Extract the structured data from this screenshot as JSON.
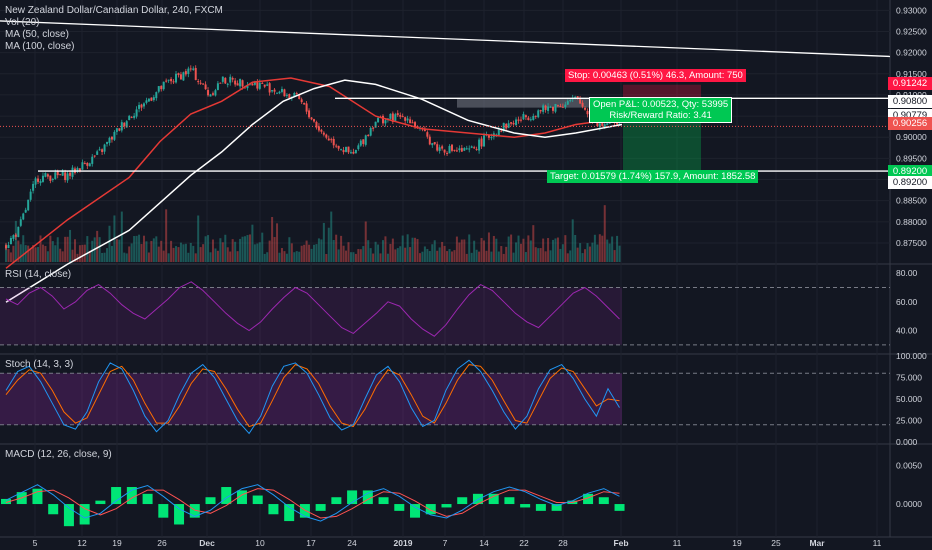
{
  "legend": {
    "symbol": "New Zealand Dollar/Canadian Dollar, 240, FXCM",
    "vol": "Vol (20)",
    "ma50": "MA (50, close)",
    "ma100": "MA (100, close)",
    "rsi": "RSI (14, close)",
    "stoch": "Stoch (14, 3, 3)",
    "macd": "MACD (12, 26, close, 9)"
  },
  "colors": {
    "background": "#131722",
    "up_candle": "#26a69a",
    "down_candle": "#ef5350",
    "ma50": "#e53935",
    "ma100": "#ffffff",
    "rsi": "#9c27b0",
    "stoch_k": "#2196f3",
    "stoch_d": "#ff6d00",
    "macd_line": "#2196f3",
    "signal_line": "#ff5252",
    "histogram": "#00e676",
    "stop_box": "#ff1744",
    "target_box": "#00c853",
    "pnl_box": "#00c853"
  },
  "price_tags": {
    "stop": "0.91242",
    "level_a": "0.90800",
    "level_b": "0.90779",
    "current": "0.90256",
    "support_a": "0.89200",
    "support_b": "0.89200"
  },
  "trade": {
    "stop_label": "Stop: 0.00463 (0.51%) 46.3, Amount: 750",
    "pnl_label": "Open P&L: 0.00523, Qty: 53995",
    "rr_label": "Risk/Reward Ratio: 3.41",
    "target_label": "Target: 0.01579 (1.74%) 157.9, Amount: 1852.58"
  },
  "chart_data": [
    {
      "type": "candlestick",
      "title": "New Zealand Dollar/Canadian Dollar, 240, FXCM",
      "ylim": [
        0.8705,
        0.9315
      ],
      "y_ticks": [
        "0.93000",
        "0.92500",
        "0.92000",
        "0.91500",
        "0.91000",
        "0.90500",
        "0.90000",
        "0.89500",
        "0.89000",
        "0.88500",
        "0.88000",
        "0.87500"
      ],
      "x_tick_labels": [
        "5",
        "12",
        "19",
        "26",
        "Dec",
        "10",
        "17",
        "24",
        "2019",
        "7",
        "14",
        "22",
        "28",
        "Feb",
        "11",
        "19",
        "25",
        "Mar",
        "11"
      ],
      "bar_count": 250,
      "price_path": [
        [
          0,
          0.8745
        ],
        [
          8,
          0.878
        ],
        [
          20,
          0.8905
        ],
        [
          40,
          0.891
        ],
        [
          60,
          0.896
        ],
        [
          80,
          0.905
        ],
        [
          105,
          0.913
        ],
        [
          120,
          0.916
        ],
        [
          132,
          0.91
        ],
        [
          140,
          0.9135
        ],
        [
          165,
          0.9125
        ],
        [
          190,
          0.909
        ],
        [
          205,
          0.901
        ],
        [
          225,
          0.8955
        ],
        [
          240,
          0.904
        ],
        [
          260,
          0.905
        ],
        [
          280,
          0.8975
        ],
        [
          300,
          0.8965
        ],
        [
          320,
          0.902
        ],
        [
          345,
          0.906
        ],
        [
          370,
          0.909
        ],
        [
          385,
          0.903
        ],
        [
          400,
          0.904
        ]
      ],
      "moving_averages": {
        "ma50_path": [
          [
            0,
            0.869
          ],
          [
            40,
            0.8805
          ],
          [
            80,
            0.8905
          ],
          [
            100,
            0.899
          ],
          [
            120,
            0.9055
          ],
          [
            140,
            0.9085
          ],
          [
            160,
            0.913
          ],
          [
            185,
            0.914
          ],
          [
            210,
            0.912
          ],
          [
            240,
            0.905
          ],
          [
            270,
            0.902
          ],
          [
            300,
            0.901
          ],
          [
            330,
            0.9
          ],
          [
            350,
            0.901
          ],
          [
            370,
            0.903
          ],
          [
            400,
            0.9045
          ]
        ],
        "ma100_path": [
          [
            0,
            0.861
          ],
          [
            40,
            0.87
          ],
          [
            80,
            0.878
          ],
          [
            100,
            0.8845
          ],
          [
            120,
            0.891
          ],
          [
            140,
            0.8965
          ],
          [
            160,
            0.903
          ],
          [
            180,
            0.9085
          ],
          [
            200,
            0.9115
          ],
          [
            220,
            0.9135
          ],
          [
            240,
            0.9125
          ],
          [
            270,
            0.909
          ],
          [
            300,
            0.904
          ],
          [
            330,
            0.901
          ],
          [
            350,
            0.9
          ],
          [
            370,
            0.901
          ],
          [
            400,
            0.903
          ]
        ]
      },
      "horizontal_lines": [
        0.9092,
        0.892
      ],
      "trendline": [
        [
          0.9275,
          0
        ],
        [
          0.9191,
          1.0
        ]
      ],
      "position": {
        "entry": 0.90779,
        "stop": 0.91242,
        "target": 0.892
      }
    },
    {
      "type": "line",
      "title": "RSI (14, close)",
      "ylim": [
        25,
        85
      ],
      "y_ticks": [
        "80.00",
        "60.00",
        "40.00"
      ],
      "bands": [
        70,
        30
      ],
      "values": [
        62,
        58,
        66,
        70,
        64,
        55,
        60,
        68,
        72,
        66,
        58,
        52,
        48,
        55,
        62,
        70,
        74,
        68,
        60,
        52,
        45,
        40,
        46,
        55,
        63,
        70,
        66,
        58,
        50,
        42,
        38,
        45,
        52,
        60,
        57,
        48,
        41,
        36,
        44,
        55,
        65,
        72,
        68,
        60,
        52,
        46,
        42,
        50,
        58,
        66,
        70,
        64,
        56,
        48
      ]
    },
    {
      "type": "line",
      "title": "Stoch (14, 3, 3)",
      "ylim": [
        0,
        100
      ],
      "y_ticks": [
        "100.000",
        "75.000",
        "50.000",
        "25.000",
        "0.000"
      ],
      "bands": [
        80,
        20
      ],
      "values_k": [
        60,
        82,
        88,
        70,
        45,
        20,
        15,
        35,
        70,
        92,
        85,
        60,
        30,
        12,
        25,
        55,
        80,
        90,
        75,
        50,
        25,
        10,
        30,
        65,
        88,
        92,
        80,
        55,
        28,
        14,
        20,
        50,
        78,
        88,
        70,
        40,
        18,
        25,
        60,
        85,
        95,
        82,
        60,
        35,
        15,
        30,
        62,
        84,
        90,
        74,
        50,
        30,
        62,
        40
      ],
      "values_d": [
        55,
        72,
        84,
        80,
        60,
        35,
        22,
        28,
        55,
        82,
        88,
        72,
        45,
        22,
        22,
        42,
        68,
        85,
        82,
        62,
        38,
        18,
        22,
        48,
        75,
        90,
        85,
        68,
        42,
        22,
        18,
        38,
        65,
        84,
        78,
        55,
        30,
        22,
        45,
        72,
        90,
        88,
        72,
        48,
        25,
        22,
        48,
        74,
        86,
        82,
        62,
        42,
        50,
        48
      ]
    },
    {
      "type": "macd",
      "title": "MACD (12, 26, close, 9)",
      "ylim": [
        -0.004,
        0.0075
      ],
      "y_ticks": [
        "0.0050",
        "0.0000"
      ],
      "macd": [
        0.0005,
        0.0015,
        0.0025,
        0.0012,
        -0.0005,
        -0.0018,
        -0.0012,
        0.0004,
        0.0018,
        0.0024,
        0.001,
        -0.0006,
        -0.0016,
        -0.0008,
        0.0008,
        0.002,
        0.0025,
        0.0012,
        -0.0004,
        -0.0016,
        -0.0022,
        -0.0012,
        0.0002,
        0.0014,
        0.002,
        0.001,
        -0.0004,
        -0.0014,
        -0.0018,
        -0.0008,
        0.0006,
        0.0016,
        0.0022,
        0.0016,
        0.0006,
        -0.0002,
        0.0004,
        0.0014,
        0.002,
        0.001
      ],
      "signal": [
        0.0002,
        0.0008,
        0.0016,
        0.0018,
        0.0008,
        -0.0006,
        -0.0014,
        -0.0006,
        0.0008,
        0.0018,
        0.0018,
        0.0006,
        -0.0008,
        -0.0012,
        -0.0002,
        0.0012,
        0.002,
        0.0018,
        0.0006,
        -0.0008,
        -0.0018,
        -0.0016,
        -0.0006,
        0.0006,
        0.0016,
        0.0014,
        0.0004,
        -0.0008,
        -0.0016,
        -0.0012,
        0.0,
        0.001,
        0.0018,
        0.0018,
        0.001,
        0.0002,
        0.0002,
        0.0008,
        0.0016,
        0.0014
      ]
    }
  ]
}
